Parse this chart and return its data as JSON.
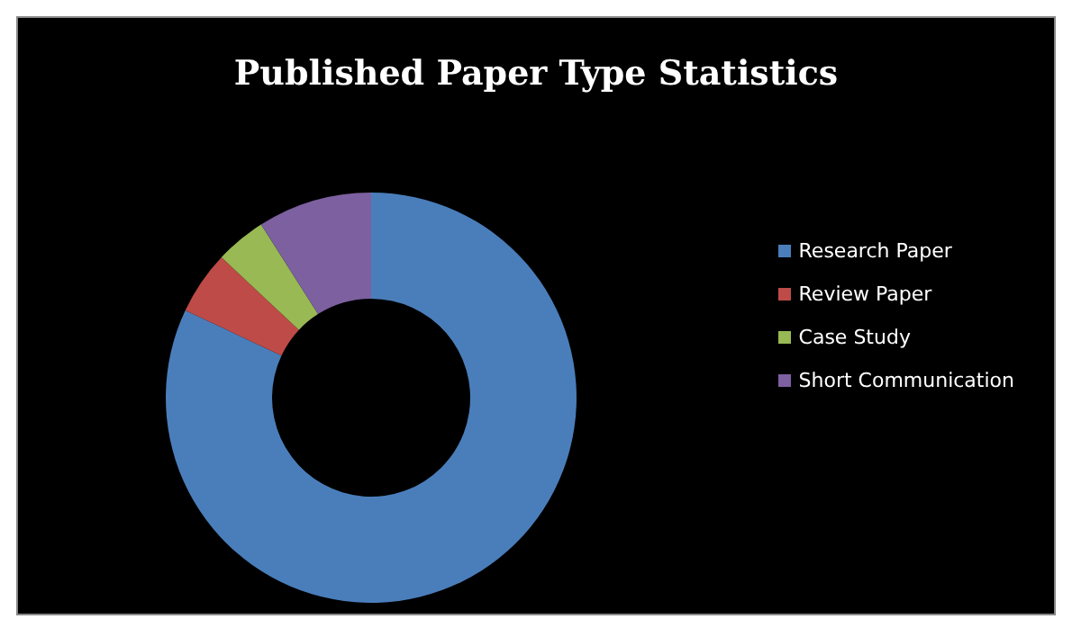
{
  "chart_data": {
    "type": "donut",
    "title": "Published Paper Type Statistics",
    "categories": [
      "Research Paper",
      "Review Paper",
      "Case Study",
      "Short Communication"
    ],
    "values": [
      82,
      5,
      4,
      9
    ],
    "colors": [
      "#4a7ebb",
      "#be4b48",
      "#98b954",
      "#7d60a0"
    ],
    "legend": "right"
  }
}
